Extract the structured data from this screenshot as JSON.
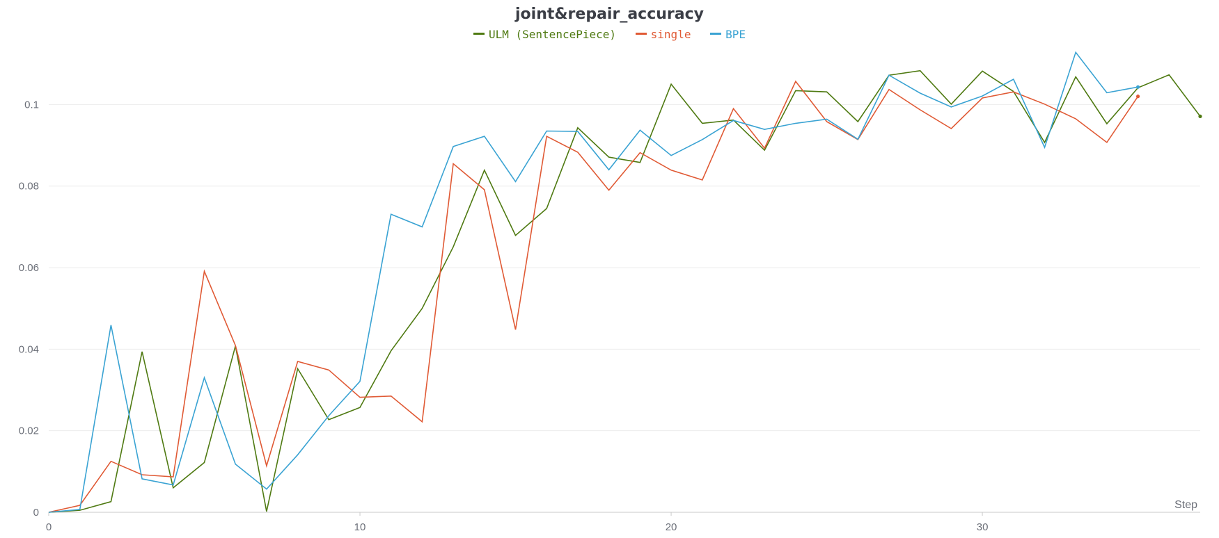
{
  "chart_data": {
    "type": "line",
    "title": "joint&repair_accuracy",
    "xlabel": "Step",
    "ylabel": "",
    "xlim": [
      0,
      37
    ],
    "ylim": [
      0,
      0.112
    ],
    "xticks": [
      0,
      10,
      20,
      30
    ],
    "xtick_labels": [
      "0",
      "10",
      "20",
      "30"
    ],
    "yticks": [
      0,
      0.02,
      0.04,
      0.06,
      0.08,
      0.1
    ],
    "ytick_labels": [
      "0",
      "0.02",
      "0.04",
      "0.06",
      "0.08",
      "0.1"
    ],
    "grid": "horizontal",
    "legend_position": "top-center",
    "series": [
      {
        "name": "ULM (SentencePiece)",
        "color": "#4f7a12",
        "x": [
          0,
          1,
          2,
          3,
          4,
          5,
          6,
          7,
          8,
          9,
          10,
          11,
          12,
          13,
          14,
          15,
          16,
          17,
          18,
          19,
          20,
          21,
          22,
          23,
          24,
          25,
          26,
          27,
          28,
          29,
          30,
          31,
          32,
          33,
          34,
          35,
          36,
          37
        ],
        "values": [
          0.0,
          0.0005,
          0.0026,
          0.0394,
          0.006,
          0.0122,
          0.0408,
          0.0002,
          0.0352,
          0.0227,
          0.0257,
          0.0396,
          0.05,
          0.0651,
          0.0839,
          0.0679,
          0.0745,
          0.0943,
          0.0871,
          0.0858,
          0.105,
          0.0954,
          0.0962,
          0.0888,
          0.1034,
          0.1031,
          0.0958,
          0.1072,
          0.1083,
          0.1001,
          0.1082,
          0.1032,
          0.0907,
          0.1068,
          0.0953,
          0.1041,
          0.1073,
          0.0971
        ]
      },
      {
        "name": "single",
        "color": "#e05a35",
        "x": [
          0,
          1,
          2,
          3,
          4,
          5,
          6,
          7,
          8,
          9,
          10,
          11,
          12,
          13,
          14,
          15,
          16,
          17,
          18,
          19,
          20,
          21,
          22,
          23,
          24,
          25,
          26,
          27,
          28,
          29,
          30,
          31,
          32,
          33,
          34,
          35
        ],
        "values": [
          0.0,
          0.0017,
          0.0125,
          0.0092,
          0.0087,
          0.0591,
          0.0409,
          0.0114,
          0.037,
          0.0349,
          0.0282,
          0.0285,
          0.0222,
          0.0855,
          0.0791,
          0.0448,
          0.0922,
          0.0883,
          0.079,
          0.0882,
          0.0839,
          0.0815,
          0.099,
          0.0893,
          0.1057,
          0.0958,
          0.0914,
          0.1037,
          0.0987,
          0.0941,
          0.1016,
          0.1031,
          0.1001,
          0.0965,
          0.0907,
          0.102
        ]
      },
      {
        "name": "BPE",
        "color": "#3aa3d3",
        "x": [
          0,
          1,
          2,
          3,
          4,
          5,
          6,
          7,
          8,
          9,
          10,
          11,
          12,
          13,
          14,
          15,
          16,
          17,
          18,
          19,
          20,
          21,
          22,
          23,
          24,
          25,
          26,
          27,
          28,
          29,
          30,
          31,
          32,
          33,
          34,
          35
        ],
        "values": [
          0.0,
          0.0007,
          0.0459,
          0.0082,
          0.0067,
          0.033,
          0.0118,
          0.0057,
          0.0141,
          0.0237,
          0.0321,
          0.0731,
          0.07,
          0.0897,
          0.0922,
          0.0811,
          0.0935,
          0.0934,
          0.084,
          0.0937,
          0.0875,
          0.0914,
          0.0961,
          0.0939,
          0.0954,
          0.0964,
          0.0915,
          0.1072,
          0.1028,
          0.0994,
          0.1021,
          0.1062,
          0.0895,
          0.1128,
          0.1029,
          0.1043
        ]
      }
    ]
  }
}
